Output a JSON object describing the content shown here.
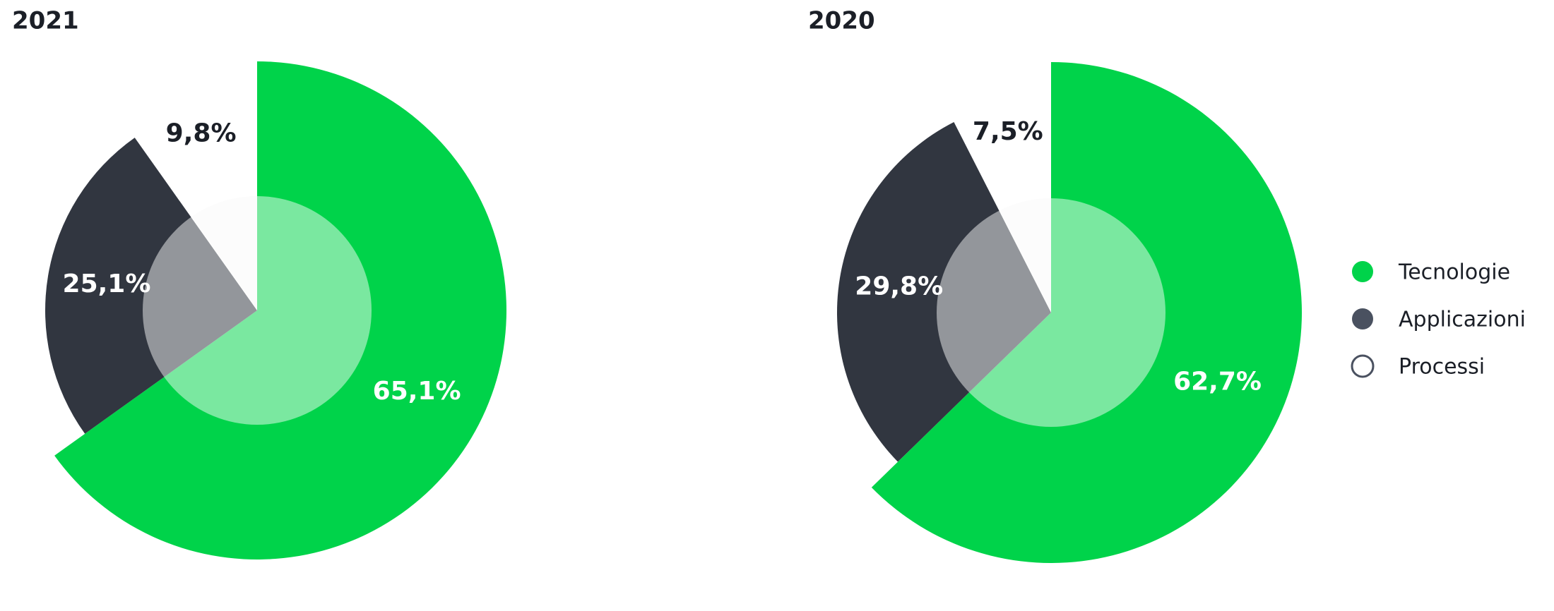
{
  "chart_data": [
    {
      "type": "pie",
      "title": "2021",
      "categories": [
        "Tecnologie",
        "Applicazioni",
        "Processi"
      ],
      "values": [
        65.1,
        25.1,
        9.8
      ],
      "value_labels": [
        "65,1%",
        "25,1%",
        "9,8%"
      ],
      "colors": [
        "#00d34a",
        "#313640",
        "#fafafa"
      ]
    },
    {
      "type": "pie",
      "title": "2020",
      "categories": [
        "Tecnologie",
        "Applicazioni",
        "Processi"
      ],
      "values": [
        62.7,
        29.8,
        7.5
      ],
      "value_labels": [
        "62,7%",
        "29,8%",
        "7,5%"
      ],
      "colors": [
        "#00d34a",
        "#313640",
        "#fafafa"
      ],
      "legend": "right"
    }
  ]
}
